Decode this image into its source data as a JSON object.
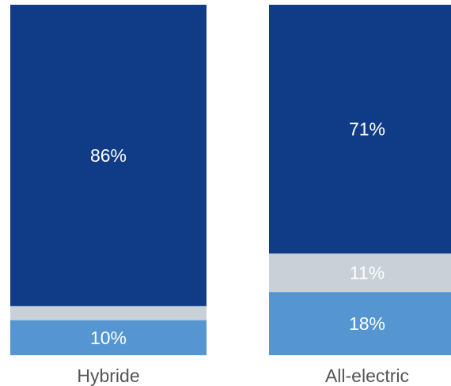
{
  "chart_data": {
    "type": "bar",
    "stacked": true,
    "normalized": true,
    "title": "",
    "xlabel": "",
    "ylabel": "",
    "ylim": [
      0,
      100
    ],
    "grid": false,
    "legend": "none",
    "categories": [
      "Hybride",
      "All-electric"
    ],
    "series": [
      {
        "color": "#5495d2",
        "values": [
          10,
          18
        ],
        "labels": [
          "10%",
          "18%"
        ]
      },
      {
        "color": "#c9d0d8",
        "values": [
          4,
          11
        ],
        "labels": [
          "",
          "11%"
        ]
      },
      {
        "color": "#0f3b87",
        "values": [
          86,
          71
        ],
        "labels": [
          "86%",
          "71%"
        ]
      }
    ]
  }
}
